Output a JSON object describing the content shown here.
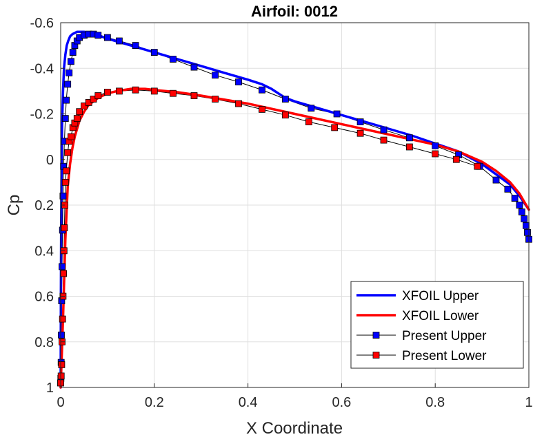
{
  "chart_data": {
    "type": "line",
    "title": "Airfoil: 0012",
    "xlabel": "X Coordinate",
    "ylabel": "Cp",
    "xlim": [
      0,
      1
    ],
    "ylim": [
      1,
      -0.6
    ],
    "y_reversed": true,
    "grid": true,
    "legend_position": "bottom-right",
    "xticks": [
      0,
      0.2,
      0.4,
      0.6,
      0.8,
      1
    ],
    "xtick_labels": [
      "0",
      "0.2",
      "0.4",
      "0.6",
      "0.8",
      "1"
    ],
    "yticks": [
      -0.6,
      -0.4,
      -0.2,
      0,
      0.2,
      0.4,
      0.6,
      0.8,
      1
    ],
    "ytick_labels": [
      "-0.6",
      "-0.4",
      "-0.2",
      "0",
      "0.2",
      "0.4",
      "0.6",
      "0.8",
      "1"
    ],
    "series": [
      {
        "name": "XFOIL Upper",
        "color": "#0000ff",
        "style": "thick-line",
        "x": [
          0.0,
          0.0005,
          0.001,
          0.002,
          0.003,
          0.005,
          0.007,
          0.01,
          0.013,
          0.016,
          0.02,
          0.025,
          0.03,
          0.035,
          0.04,
          0.05,
          0.06,
          0.07,
          0.08,
          0.1,
          0.125,
          0.15,
          0.2,
          0.25,
          0.3,
          0.35,
          0.4,
          0.43,
          0.45,
          0.48,
          0.5,
          0.55,
          0.6,
          0.65,
          0.7,
          0.75,
          0.8,
          0.85,
          0.9,
          0.93,
          0.96,
          0.98,
          1.0
        ],
        "y": [
          1.0,
          0.6,
          0.3,
          0.0,
          -0.15,
          -0.3,
          -0.4,
          -0.46,
          -0.5,
          -0.52,
          -0.54,
          -0.55,
          -0.555,
          -0.56,
          -0.56,
          -0.56,
          -0.555,
          -0.55,
          -0.545,
          -0.53,
          -0.515,
          -0.5,
          -0.47,
          -0.44,
          -0.41,
          -0.38,
          -0.35,
          -0.33,
          -0.31,
          -0.27,
          -0.255,
          -0.225,
          -0.195,
          -0.165,
          -0.135,
          -0.105,
          -0.07,
          -0.035,
          0.02,
          0.065,
          0.11,
          0.16,
          0.22
        ]
      },
      {
        "name": "XFOIL Lower",
        "color": "#ff0000",
        "style": "thick-line",
        "x": [
          0.0,
          0.005,
          0.01,
          0.015,
          0.02,
          0.025,
          0.03,
          0.04,
          0.05,
          0.06,
          0.08,
          0.1,
          0.12,
          0.15,
          0.18,
          0.2,
          0.25,
          0.3,
          0.4,
          0.5,
          0.6,
          0.7,
          0.8,
          0.85,
          0.9,
          0.93,
          0.96,
          0.98,
          1.0
        ],
        "y": [
          1.0,
          0.7,
          0.35,
          0.12,
          0.02,
          -0.05,
          -0.1,
          -0.17,
          -0.21,
          -0.24,
          -0.27,
          -0.29,
          -0.3,
          -0.31,
          -0.31,
          -0.305,
          -0.295,
          -0.28,
          -0.245,
          -0.2,
          -0.155,
          -0.11,
          -0.065,
          -0.035,
          0.01,
          0.05,
          0.1,
          0.15,
          0.22
        ]
      },
      {
        "name": "Present Upper",
        "color": "#0000ff",
        "style": "thin-line-square-markers",
        "x": [
          0.0,
          0.0005,
          0.001,
          0.0015,
          0.002,
          0.003,
          0.004,
          0.005,
          0.006,
          0.008,
          0.01,
          0.012,
          0.015,
          0.018,
          0.022,
          0.026,
          0.03,
          0.035,
          0.04,
          0.05,
          0.06,
          0.07,
          0.08,
          0.1,
          0.125,
          0.16,
          0.2,
          0.24,
          0.285,
          0.33,
          0.38,
          0.43,
          0.48,
          0.535,
          0.59,
          0.64,
          0.69,
          0.745,
          0.8,
          0.85,
          0.895,
          0.93,
          0.955,
          0.97,
          0.98,
          0.985,
          0.99,
          0.994,
          0.997,
          1.0
        ],
        "y": [
          0.98,
          0.96,
          0.89,
          0.77,
          0.62,
          0.47,
          0.31,
          0.16,
          0.03,
          -0.08,
          -0.18,
          -0.26,
          -0.33,
          -0.38,
          -0.43,
          -0.47,
          -0.5,
          -0.52,
          -0.535,
          -0.545,
          -0.55,
          -0.55,
          -0.545,
          -0.535,
          -0.52,
          -0.5,
          -0.47,
          -0.44,
          -0.405,
          -0.37,
          -0.34,
          -0.305,
          -0.265,
          -0.225,
          -0.2,
          -0.165,
          -0.13,
          -0.095,
          -0.06,
          -0.02,
          0.03,
          0.09,
          0.13,
          0.17,
          0.2,
          0.23,
          0.26,
          0.29,
          0.32,
          0.35
        ]
      },
      {
        "name": "Present Lower",
        "color": "#ff0000",
        "style": "thin-line-square-markers",
        "x": [
          0.0,
          0.001,
          0.002,
          0.003,
          0.004,
          0.005,
          0.006,
          0.007,
          0.008,
          0.009,
          0.01,
          0.012,
          0.015,
          0.018,
          0.022,
          0.026,
          0.03,
          0.035,
          0.04,
          0.05,
          0.06,
          0.07,
          0.08,
          0.1,
          0.125,
          0.16,
          0.2,
          0.24,
          0.285,
          0.33,
          0.38,
          0.43,
          0.48,
          0.53,
          0.585,
          0.64,
          0.69,
          0.745,
          0.8,
          0.845,
          0.89
        ],
        "y": [
          0.98,
          0.95,
          0.9,
          0.8,
          0.7,
          0.6,
          0.5,
          0.4,
          0.3,
          0.2,
          0.1,
          0.05,
          -0.03,
          -0.08,
          -0.1,
          -0.14,
          -0.16,
          -0.18,
          -0.21,
          -0.235,
          -0.25,
          -0.265,
          -0.28,
          -0.295,
          -0.3,
          -0.305,
          -0.3,
          -0.29,
          -0.28,
          -0.265,
          -0.245,
          -0.22,
          -0.195,
          -0.165,
          -0.14,
          -0.115,
          -0.085,
          -0.055,
          -0.025,
          0.0,
          0.03
        ]
      }
    ]
  }
}
